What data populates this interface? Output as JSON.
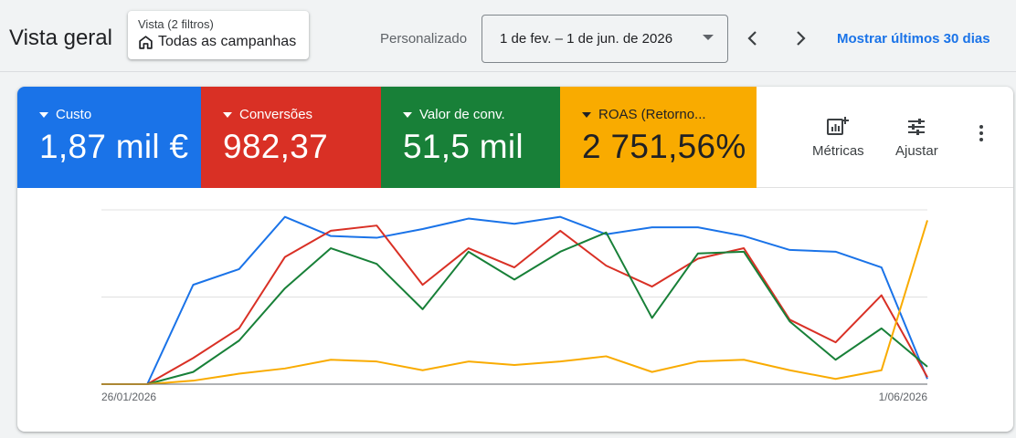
{
  "header": {
    "title": "Vista geral",
    "view_sub": "Vista (2 filtros)",
    "view_main": "Todas as campanhas",
    "period_label": "Personalizado",
    "date_range": "1 de fev. – 1 de jun. de 2026",
    "show_last_30": "Mostrar últimos 30 dias"
  },
  "tiles": [
    {
      "label": "Custo",
      "value": "1,87 mil €",
      "color": "#1a73e8"
    },
    {
      "label": "Conversões",
      "value": "982,37",
      "color": "#d93025"
    },
    {
      "label": "Valor de conv.",
      "value": "51,5 mil",
      "color": "#188038"
    },
    {
      "label": "ROAS (Retorno...",
      "value": "2 751,56%",
      "color": "#f9ab00"
    }
  ],
  "tools": {
    "metrics": "Métricas",
    "adjust": "Ajustar",
    "metrics_icon": "metrics-icon",
    "adjust_icon": "tune-icon",
    "more_icon": "more-vert-icon"
  },
  "chart_data": {
    "type": "line",
    "x": [
      "26/01/2026",
      "02/02/2026",
      "09/02/2026",
      "16/02/2026",
      "23/02/2026",
      "02/03/2026",
      "09/03/2026",
      "16/03/2026",
      "23/03/2026",
      "30/03/2026",
      "06/04/2026",
      "13/04/2026",
      "20/04/2026",
      "27/04/2026",
      "04/05/2026",
      "11/05/2026",
      "18/05/2026",
      "25/05/2026",
      "1/06/2026"
    ],
    "x_tick_labels": [
      "26/01/2026",
      "1/06/2026"
    ],
    "y_range": [
      0,
      100
    ],
    "grid": true,
    "series": [
      {
        "name": "Custo",
        "color": "#1a73e8",
        "values": [
          0,
          0,
          57,
          66,
          96,
          85,
          84,
          89,
          95,
          92,
          96,
          86,
          90,
          90,
          85,
          77,
          76,
          67,
          3
        ]
      },
      {
        "name": "Conversões",
        "color": "#d93025",
        "values": [
          0,
          0,
          15,
          32,
          73,
          88,
          91,
          57,
          78,
          67,
          88,
          68,
          56,
          72,
          78,
          37,
          24,
          51,
          4
        ]
      },
      {
        "name": "Valor de conv.",
        "color": "#188038",
        "values": [
          0,
          0,
          7,
          25,
          55,
          78,
          69,
          43,
          76,
          60,
          76,
          87,
          38,
          75,
          76,
          36,
          14,
          32,
          10
        ]
      },
      {
        "name": "ROAS (Retorno...",
        "color": "#f9ab00",
        "values": [
          0,
          0,
          2,
          6,
          9,
          14,
          13,
          8,
          13,
          11,
          13,
          16,
          7,
          13,
          14,
          8,
          3,
          8,
          94
        ]
      }
    ]
  }
}
